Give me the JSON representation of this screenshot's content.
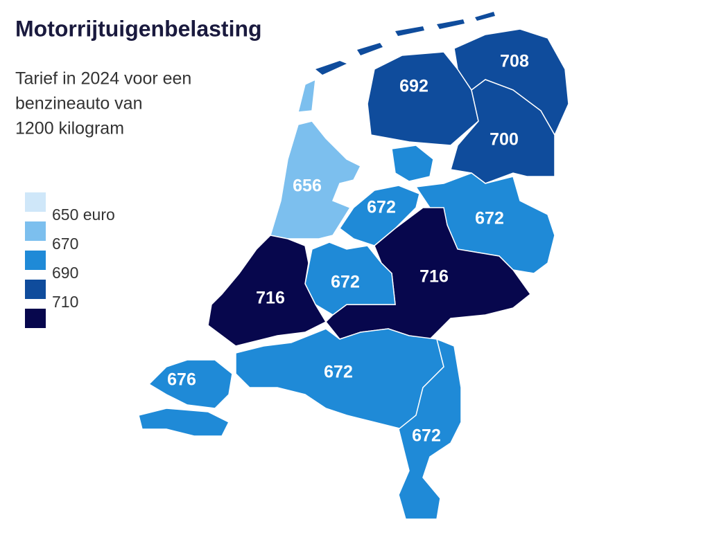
{
  "header": {
    "title": "Motorrijtuigenbelasting",
    "subtitle": [
      "Tarief in 2024 voor een",
      "benzineauto van",
      "1200 kilogram"
    ]
  },
  "legend": {
    "colors": [
      "#cfe7f9",
      "#7cbfee",
      "#1f8ad7",
      "#0f4c9c",
      "#07074d"
    ],
    "labels": [
      "650 euro",
      "670",
      "690",
      "710"
    ]
  },
  "regions": [
    {
      "value": 692,
      "color": "#0f4c9c"
    },
    {
      "value": 708,
      "color": "#0f4c9c"
    },
    {
      "value": 700,
      "color": "#0f4c9c"
    },
    {
      "value": 656,
      "color": "#7cbfee"
    },
    {
      "value": 672,
      "color": "#1f8ad7"
    },
    {
      "value": 672,
      "color": "#1f8ad7"
    },
    {
      "value": 716,
      "color": "#07074d"
    },
    {
      "value": 672,
      "color": "#1f8ad7"
    },
    {
      "value": 716,
      "color": "#07074d"
    },
    {
      "value": 676,
      "color": "#1f8ad7"
    },
    {
      "value": 672,
      "color": "#1f8ad7"
    },
    {
      "value": 672,
      "color": "#1f8ad7"
    }
  ]
}
